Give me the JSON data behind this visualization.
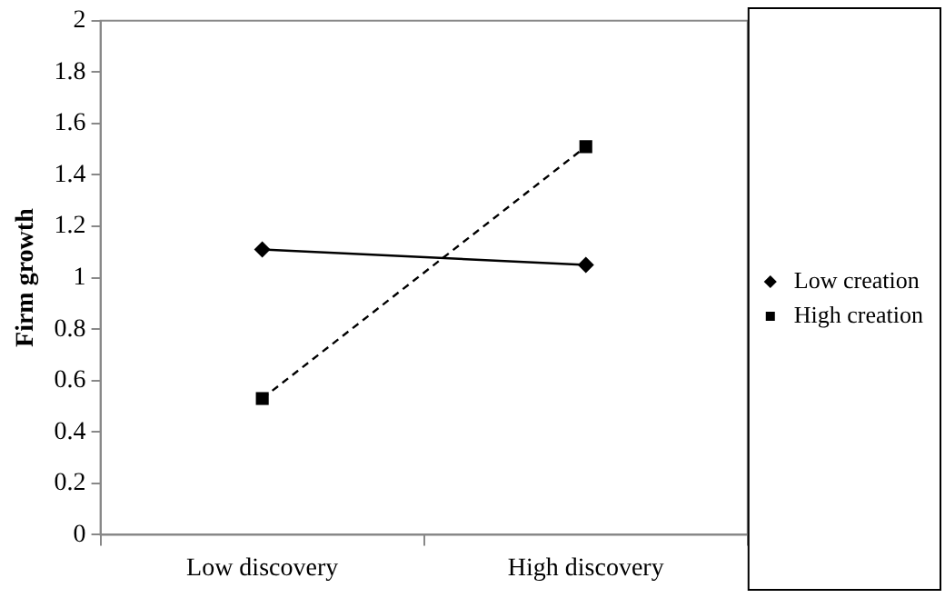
{
  "chart_data": {
    "type": "line",
    "ylabel": "Firm growth",
    "categories": [
      "Low discovery",
      "High discovery"
    ],
    "series": [
      {
        "name": "Low creation",
        "color": "#000000",
        "values": [
          1.11,
          1.05
        ],
        "marker": "diamond",
        "line_style": "solid"
      },
      {
        "name": "High creation",
        "color": "#000000",
        "values": [
          0.53,
          1.51
        ],
        "marker": "square",
        "line_style": "dashed"
      }
    ],
    "ylim": [
      0,
      2
    ],
    "yticks": [
      0,
      0.2,
      0.4,
      0.6,
      0.8,
      1,
      1.2,
      1.4,
      1.6,
      1.8,
      2
    ],
    "grid": false,
    "legend": "right"
  }
}
